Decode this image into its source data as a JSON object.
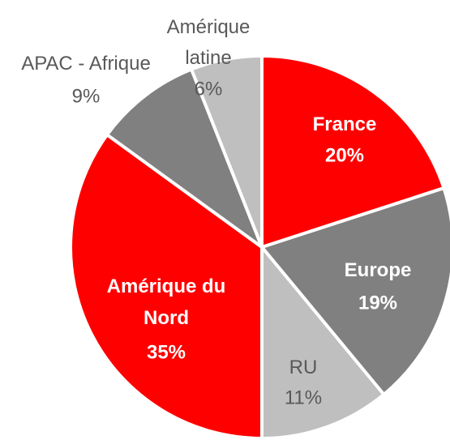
{
  "chart_data": {
    "type": "pie",
    "categories": [
      "France",
      "Europe",
      "RU",
      "Amérique du Nord",
      "APAC - Afrique",
      "Amérique latine"
    ],
    "values": [
      20,
      19,
      11,
      35,
      9,
      6
    ],
    "value_labels": [
      "20%",
      "19%",
      "11%",
      "35%",
      "9%",
      "6%"
    ],
    "colors": [
      "#ff0000",
      "#808080",
      "#bfbfbf",
      "#ff0000",
      "#808080",
      "#bfbfbf"
    ],
    "label_colors": [
      "#ffffff",
      "#ffffff",
      "#595959",
      "#ffffff",
      "#595959",
      "#595959"
    ],
    "label_bold": [
      true,
      true,
      false,
      true,
      false,
      false
    ]
  }
}
